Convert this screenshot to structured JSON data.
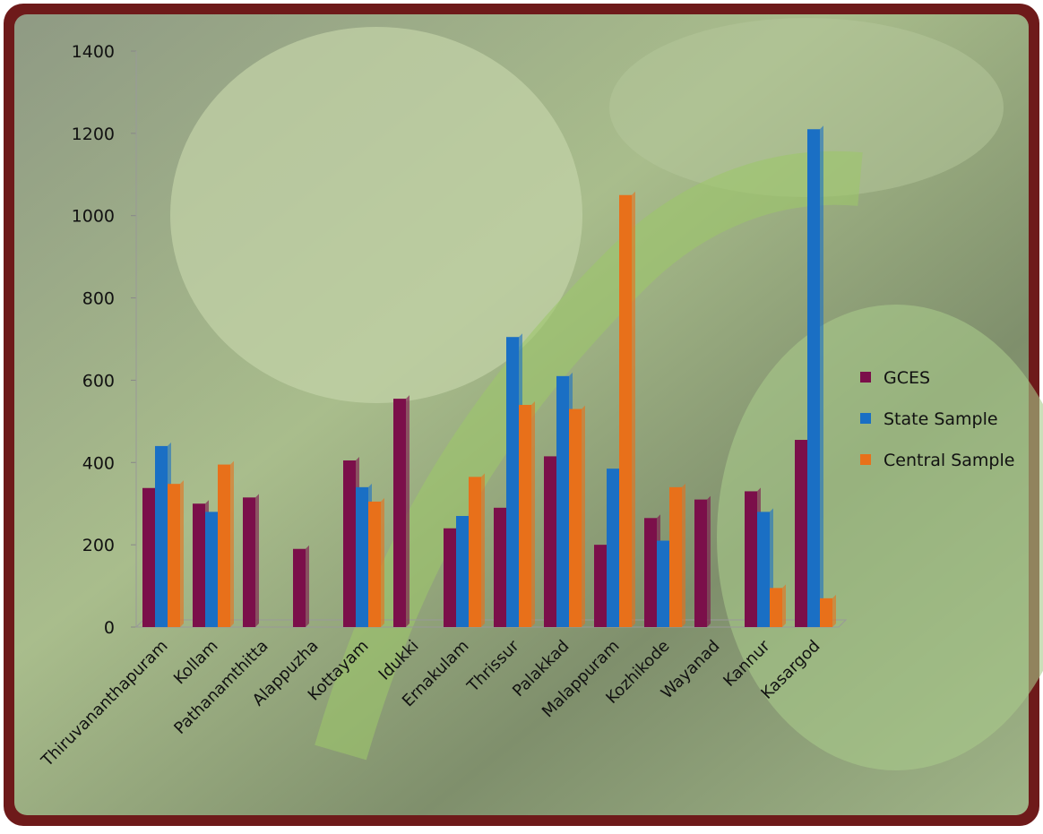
{
  "chart_data": {
    "type": "bar",
    "categories": [
      "Thiruvananthapuram",
      "Kollam",
      "Pathanamthitta",
      "Alappuzha",
      "Kottayam",
      "Idukki",
      "Ernakulam",
      "Thrissur",
      "Palakkad",
      "Malappuram",
      "Kozhikode",
      "Wayanad",
      "Kannur",
      "Kasargod"
    ],
    "series": [
      {
        "name": "GCES",
        "color": "#7b0f4a",
        "values": [
          338,
          300,
          315,
          190,
          405,
          555,
          240,
          290,
          415,
          200,
          265,
          310,
          330,
          455
        ]
      },
      {
        "name": "State Sample",
        "color": "#1a6fc4",
        "values": [
          440,
          280,
          null,
          null,
          340,
          null,
          270,
          705,
          610,
          385,
          210,
          null,
          280,
          1210
        ]
      },
      {
        "name": "Central Sample",
        "color": "#e8701a",
        "values": [
          348,
          395,
          null,
          null,
          305,
          null,
          365,
          540,
          530,
          1050,
          340,
          null,
          95,
          70
        ]
      }
    ],
    "ylim": [
      0,
      1400
    ],
    "yticks": [
      0,
      200,
      400,
      600,
      800,
      1000,
      1200,
      1400
    ],
    "legend": "right"
  }
}
